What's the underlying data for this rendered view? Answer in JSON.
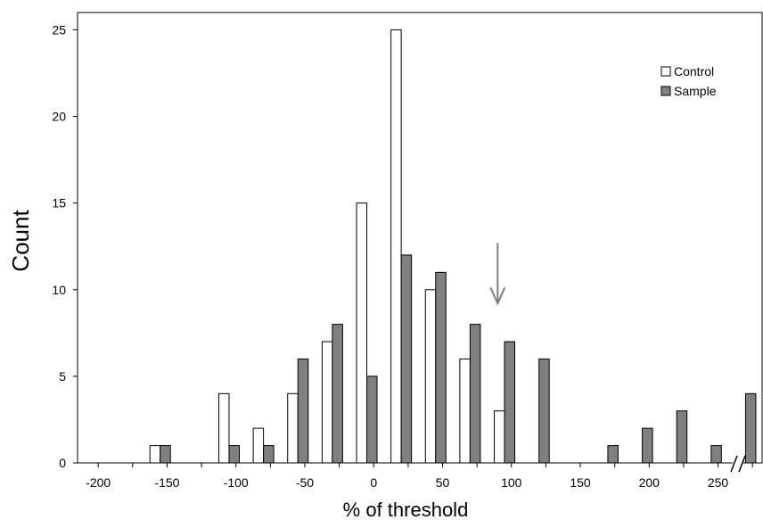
{
  "chart_data": {
    "type": "bar",
    "title": "",
    "xlabel": "% of threshold",
    "ylabel": "Count",
    "ylim": [
      0,
      26
    ],
    "xlim": [
      -215,
      282
    ],
    "x_ticks": [
      -200,
      -150,
      -100,
      -50,
      0,
      50,
      100,
      150,
      200,
      250
    ],
    "y_ticks": [
      0,
      5,
      10,
      15,
      20,
      25
    ],
    "grid": false,
    "legend_position": "top-right",
    "x": [
      -155,
      -105,
      -80,
      -55,
      -30,
      -5,
      20,
      45,
      70,
      95,
      120,
      170,
      195,
      220,
      245,
      270
    ],
    "series": [
      {
        "name": "Control",
        "color": "#ffffff",
        "values": [
          1,
          4,
          2,
          4,
          7,
          15,
          25,
          10,
          6,
          3,
          0,
          0,
          0,
          0,
          0,
          0
        ]
      },
      {
        "name": "Sample",
        "color": "#808080",
        "values": [
          1,
          1,
          1,
          6,
          8,
          5,
          12,
          11,
          8,
          7,
          6,
          1,
          2,
          3,
          1,
          4
        ]
      }
    ],
    "annotations": [
      {
        "type": "arrow",
        "x": 90,
        "y_top": 12.7,
        "y_bottom": 9.2,
        "color": "#808080"
      },
      {
        "type": "axis-break",
        "x": 260
      }
    ]
  }
}
